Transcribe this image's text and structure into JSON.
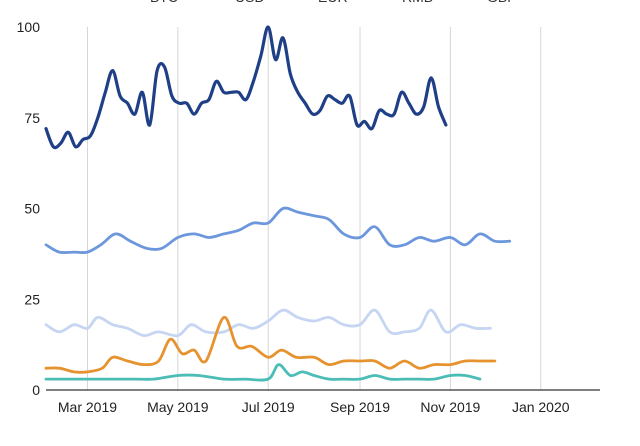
{
  "chart_data": {
    "type": "line",
    "legend": [
      "BTC",
      "USD",
      "EUR",
      "RMB",
      "GBP"
    ],
    "legend_position": "top",
    "grid": {
      "vertical": true,
      "horizontal": false
    },
    "ylim": [
      0,
      100
    ],
    "yticks": [
      0,
      25,
      50,
      75,
      100
    ],
    "xlim": [
      "2019-02-01",
      "2020-02-10"
    ],
    "xticks": [
      {
        "date": "2019-03-01",
        "label": "Mar 2019"
      },
      {
        "date": "2019-05-01",
        "label": "May 2019"
      },
      {
        "date": "2019-07-01",
        "label": "Jul 2019"
      },
      {
        "date": "2019-09-01",
        "label": "Sep 2019"
      },
      {
        "date": "2019-11-01",
        "label": "Nov 2019"
      },
      {
        "date": "2020-01-01",
        "label": "Jan 2020"
      }
    ],
    "series": [
      {
        "name": "USD",
        "color": "#1f3f87",
        "points": [
          [
            "2019-02-01",
            72
          ],
          [
            "2019-02-06",
            67
          ],
          [
            "2019-02-11",
            68
          ],
          [
            "2019-02-16",
            71
          ],
          [
            "2019-02-21",
            67
          ],
          [
            "2019-02-26",
            69
          ],
          [
            "2019-03-03",
            70
          ],
          [
            "2019-03-08",
            75
          ],
          [
            "2019-03-13",
            82
          ],
          [
            "2019-03-18",
            88
          ],
          [
            "2019-03-23",
            81
          ],
          [
            "2019-03-28",
            79
          ],
          [
            "2019-04-02",
            76
          ],
          [
            "2019-04-07",
            82
          ],
          [
            "2019-04-12",
            73
          ],
          [
            "2019-04-17",
            88
          ],
          [
            "2019-04-22",
            89
          ],
          [
            "2019-04-27",
            81
          ],
          [
            "2019-05-02",
            79
          ],
          [
            "2019-05-07",
            79
          ],
          [
            "2019-05-12",
            76
          ],
          [
            "2019-05-17",
            79
          ],
          [
            "2019-05-22",
            80
          ],
          [
            "2019-05-27",
            85
          ],
          [
            "2019-06-01",
            82
          ],
          [
            "2019-06-06",
            82
          ],
          [
            "2019-06-11",
            82
          ],
          [
            "2019-06-16",
            80
          ],
          [
            "2019-06-21",
            85
          ],
          [
            "2019-06-26",
            92
          ],
          [
            "2019-07-01",
            100
          ],
          [
            "2019-07-06",
            91
          ],
          [
            "2019-07-11",
            97
          ],
          [
            "2019-07-16",
            87
          ],
          [
            "2019-07-21",
            82
          ],
          [
            "2019-07-26",
            79
          ],
          [
            "2019-07-31",
            76
          ],
          [
            "2019-08-05",
            77
          ],
          [
            "2019-08-10",
            81
          ],
          [
            "2019-08-15",
            80
          ],
          [
            "2019-08-20",
            79
          ],
          [
            "2019-08-25",
            81
          ],
          [
            "2019-08-30",
            73
          ],
          [
            "2019-09-04",
            74
          ],
          [
            "2019-09-09",
            72
          ],
          [
            "2019-09-14",
            77
          ],
          [
            "2019-09-19",
            76
          ],
          [
            "2019-09-24",
            76
          ],
          [
            "2019-09-29",
            82
          ],
          [
            "2019-10-04",
            79
          ],
          [
            "2019-10-09",
            76
          ],
          [
            "2019-10-14",
            78
          ],
          [
            "2019-10-19",
            86
          ],
          [
            "2019-10-24",
            78
          ],
          [
            "2019-10-29",
            73
          ]
        ]
      },
      {
        "name": "EUR",
        "color": "#6c97dc",
        "points": [
          [
            "2019-02-01",
            40
          ],
          [
            "2019-02-10",
            38
          ],
          [
            "2019-02-20",
            38
          ],
          [
            "2019-03-01",
            38
          ],
          [
            "2019-03-10",
            40
          ],
          [
            "2019-03-20",
            43
          ],
          [
            "2019-03-30",
            41
          ],
          [
            "2019-04-10",
            39
          ],
          [
            "2019-04-20",
            39
          ],
          [
            "2019-05-01",
            42
          ],
          [
            "2019-05-12",
            43
          ],
          [
            "2019-05-22",
            42
          ],
          [
            "2019-06-01",
            43
          ],
          [
            "2019-06-11",
            44
          ],
          [
            "2019-06-21",
            46
          ],
          [
            "2019-07-01",
            46
          ],
          [
            "2019-07-11",
            50
          ],
          [
            "2019-07-21",
            49
          ],
          [
            "2019-08-01",
            48
          ],
          [
            "2019-08-11",
            47
          ],
          [
            "2019-08-21",
            43
          ],
          [
            "2019-09-01",
            42
          ],
          [
            "2019-09-11",
            45
          ],
          [
            "2019-09-21",
            40
          ],
          [
            "2019-10-01",
            40
          ],
          [
            "2019-10-11",
            42
          ],
          [
            "2019-10-21",
            41
          ],
          [
            "2019-11-01",
            42
          ],
          [
            "2019-11-11",
            40
          ],
          [
            "2019-11-21",
            43
          ],
          [
            "2019-12-01",
            41
          ],
          [
            "2019-12-11",
            41
          ]
        ]
      },
      {
        "name": "GBP",
        "color": "#c6d5f1",
        "points": [
          [
            "2019-02-01",
            18
          ],
          [
            "2019-02-10",
            16
          ],
          [
            "2019-02-20",
            18
          ],
          [
            "2019-03-01",
            17
          ],
          [
            "2019-03-08",
            20
          ],
          [
            "2019-03-18",
            18
          ],
          [
            "2019-03-28",
            17
          ],
          [
            "2019-04-08",
            15
          ],
          [
            "2019-04-18",
            16
          ],
          [
            "2019-05-01",
            15
          ],
          [
            "2019-05-10",
            18
          ],
          [
            "2019-05-20",
            16
          ],
          [
            "2019-06-01",
            16
          ],
          [
            "2019-06-11",
            18
          ],
          [
            "2019-06-21",
            17
          ],
          [
            "2019-07-01",
            19
          ],
          [
            "2019-07-11",
            22
          ],
          [
            "2019-07-21",
            20
          ],
          [
            "2019-08-01",
            19
          ],
          [
            "2019-08-11",
            20
          ],
          [
            "2019-08-21",
            18
          ],
          [
            "2019-09-01",
            18
          ],
          [
            "2019-09-11",
            22
          ],
          [
            "2019-09-21",
            16
          ],
          [
            "2019-10-01",
            16
          ],
          [
            "2019-10-11",
            17
          ],
          [
            "2019-10-19",
            22
          ],
          [
            "2019-10-29",
            16
          ],
          [
            "2019-11-08",
            18
          ],
          [
            "2019-11-18",
            17
          ],
          [
            "2019-11-28",
            17
          ]
        ]
      },
      {
        "name": "BTC",
        "color": "#e6922f",
        "points": [
          [
            "2019-02-01",
            6
          ],
          [
            "2019-02-10",
            6
          ],
          [
            "2019-02-20",
            5
          ],
          [
            "2019-03-01",
            5
          ],
          [
            "2019-03-11",
            6
          ],
          [
            "2019-03-18",
            9
          ],
          [
            "2019-03-28",
            8
          ],
          [
            "2019-04-08",
            7
          ],
          [
            "2019-04-18",
            8
          ],
          [
            "2019-04-26",
            14
          ],
          [
            "2019-05-04",
            10
          ],
          [
            "2019-05-12",
            11
          ],
          [
            "2019-05-20",
            8
          ],
          [
            "2019-06-01",
            20
          ],
          [
            "2019-06-10",
            12
          ],
          [
            "2019-06-20",
            12
          ],
          [
            "2019-07-01",
            9
          ],
          [
            "2019-07-10",
            11
          ],
          [
            "2019-07-20",
            9
          ],
          [
            "2019-08-01",
            9
          ],
          [
            "2019-08-11",
            7
          ],
          [
            "2019-08-21",
            8
          ],
          [
            "2019-09-01",
            8
          ],
          [
            "2019-09-11",
            8
          ],
          [
            "2019-09-21",
            6
          ],
          [
            "2019-10-01",
            8
          ],
          [
            "2019-10-11",
            6
          ],
          [
            "2019-10-21",
            7
          ],
          [
            "2019-11-01",
            7
          ],
          [
            "2019-11-11",
            8
          ],
          [
            "2019-11-21",
            8
          ],
          [
            "2019-12-01",
            8
          ]
        ]
      },
      {
        "name": "RMB",
        "color": "#4cbcb6",
        "points": [
          [
            "2019-02-01",
            3
          ],
          [
            "2019-03-01",
            3
          ],
          [
            "2019-04-01",
            3
          ],
          [
            "2019-04-15",
            3
          ],
          [
            "2019-05-01",
            4
          ],
          [
            "2019-05-15",
            4
          ],
          [
            "2019-06-01",
            3
          ],
          [
            "2019-06-15",
            3
          ],
          [
            "2019-07-01",
            3
          ],
          [
            "2019-07-08",
            7
          ],
          [
            "2019-07-16",
            4
          ],
          [
            "2019-07-24",
            5
          ],
          [
            "2019-08-01",
            4
          ],
          [
            "2019-08-11",
            3
          ],
          [
            "2019-08-21",
            3
          ],
          [
            "2019-09-01",
            3
          ],
          [
            "2019-09-11",
            4
          ],
          [
            "2019-09-21",
            3
          ],
          [
            "2019-10-01",
            3
          ],
          [
            "2019-10-11",
            3
          ],
          [
            "2019-10-21",
            3
          ],
          [
            "2019-11-01",
            4
          ],
          [
            "2019-11-11",
            4
          ],
          [
            "2019-11-21",
            3
          ]
        ]
      }
    ]
  }
}
